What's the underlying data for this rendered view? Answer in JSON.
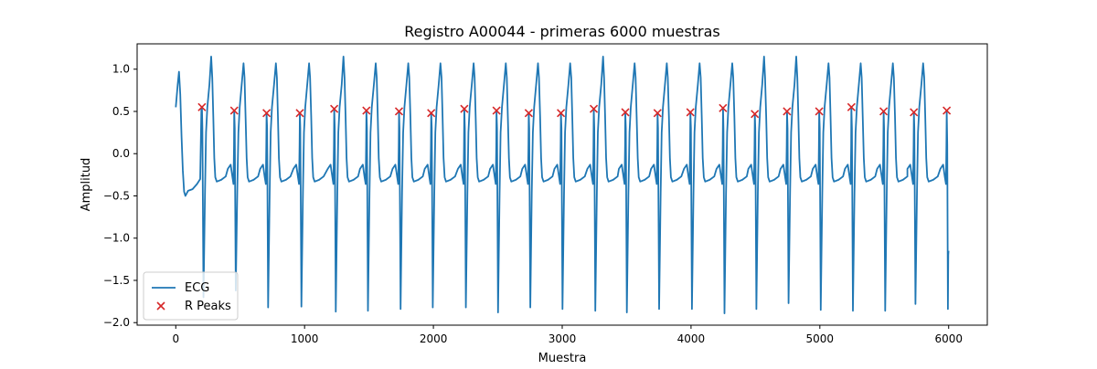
{
  "chart_data": {
    "type": "line",
    "title": "Registro A00044 - primeras 6000 muestras",
    "xlabel": "Muestra",
    "ylabel": "Amplitud",
    "xlim": [
      -300,
      6300
    ],
    "ylim": [
      -2.03,
      1.3
    ],
    "xticks": [
      0,
      1000,
      2000,
      3000,
      4000,
      5000,
      6000
    ],
    "xtick_labels": [
      "0",
      "1000",
      "2000",
      "3000",
      "4000",
      "5000",
      "6000"
    ],
    "yticks": [
      -2.0,
      -1.5,
      -1.0,
      -0.5,
      0.0,
      0.5,
      1.0
    ],
    "ytick_labels": [
      "−2.0",
      "−1.5",
      "−1.0",
      "−0.5",
      "0.0",
      "0.5",
      "1.0"
    ],
    "grid": false,
    "legend": {
      "placement": "lower-left",
      "entries": [
        "ECG",
        "R Peaks"
      ]
    },
    "series": [
      {
        "name": "ECG",
        "kind": "line",
        "color": "#1f77b4",
        "start_value": 0.55,
        "end_value": -1.15,
        "peak_amplitudes": [
          0.97,
          1.15,
          1.07,
          1.07,
          1.07,
          1.15,
          1.07,
          1.07,
          1.07,
          1.07,
          1.07,
          1.07,
          1.07,
          1.15,
          1.07,
          1.07,
          1.07,
          1.07,
          1.15,
          1.15,
          1.07,
          1.07,
          1.07,
          1.07,
          1.15,
          1.07,
          1.07
        ],
        "trough_values": [
          -1.7,
          -1.62,
          -1.82,
          -1.81,
          -1.87,
          -1.86,
          -1.84,
          -1.82,
          -1.82,
          -1.88,
          -1.82,
          -1.84,
          -1.86,
          -1.88,
          -1.84,
          -1.84,
          -1.89,
          -1.84,
          -1.77,
          -1.85,
          -1.86,
          -1.86,
          -1.78,
          -1.84
        ]
      },
      {
        "name": "R Peaks",
        "kind": "scatter",
        "marker": "x",
        "color": "#d62728",
        "x": [
          203,
          454,
          705,
          963,
          1230,
          1480,
          1733,
          1983,
          2240,
          2490,
          2740,
          2990,
          3245,
          3490,
          3740,
          3995,
          4248,
          4495,
          4745,
          4995,
          5245,
          5495,
          5730,
          5985
        ],
        "y": [
          0.55,
          0.51,
          0.48,
          0.48,
          0.53,
          0.51,
          0.5,
          0.48,
          0.53,
          0.51,
          0.48,
          0.48,
          0.53,
          0.49,
          0.48,
          0.49,
          0.54,
          0.47,
          0.5,
          0.5,
          0.55,
          0.5,
          0.49,
          0.51
        ]
      }
    ]
  }
}
